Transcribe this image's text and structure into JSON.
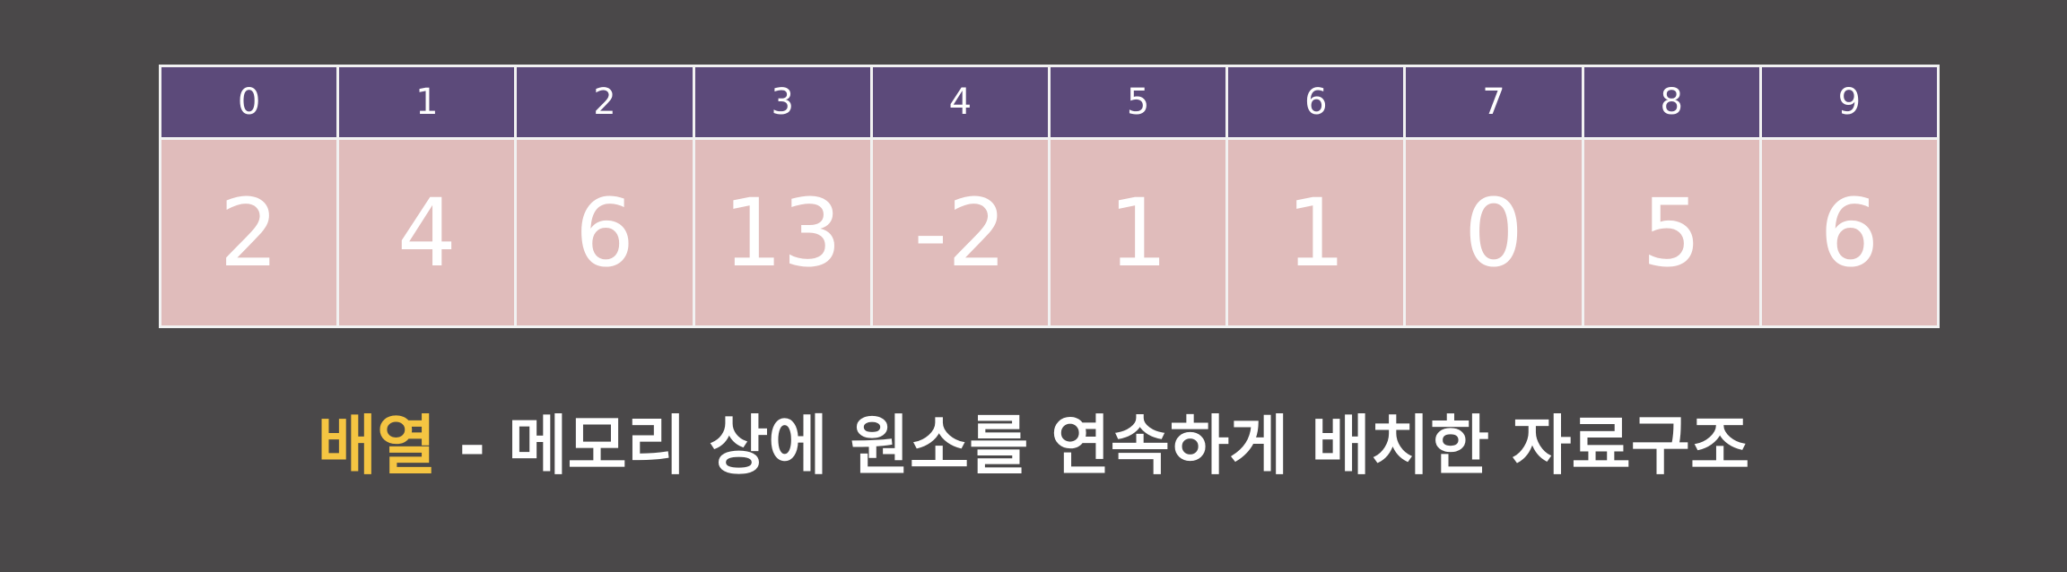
{
  "array": {
    "indices": [
      "0",
      "1",
      "2",
      "3",
      "4",
      "5",
      "6",
      "7",
      "8",
      "9"
    ],
    "values": [
      "2",
      "4",
      "6",
      "13",
      "-2",
      "1",
      "1",
      "0",
      "5",
      "6"
    ]
  },
  "caption": {
    "term": "배열",
    "definition": " - 메모리 상에 원소를 연속하게 배치한 자료구조"
  },
  "colors": {
    "background": "#4a4849",
    "index_cell": "#5c4a7a",
    "value_cell": "#e0bcbb",
    "term_highlight": "#f5c542"
  }
}
